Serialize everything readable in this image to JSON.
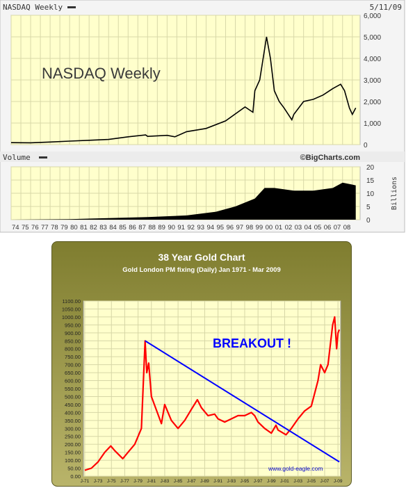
{
  "chart_data": [
    {
      "type": "line",
      "title": "NASDAQ Weekly",
      "header_label": "NASDAQ Weekly",
      "date": "5/11/09",
      "watermark": "NASDAQ Weekly",
      "credit": "©BigCharts.com",
      "colors": {
        "background": "#ffffcc",
        "line": "#000000",
        "grid": "#cfcfa0"
      },
      "grid": true,
      "price_axis": {
        "ylim": [
          0,
          6000
        ],
        "ticks": [
          0,
          1000,
          2000,
          3000,
          4000,
          5000,
          6000
        ],
        "tick_labels": [
          "0",
          "1,000",
          "2,000",
          "3,000",
          "4,000",
          "5,000",
          "6,000"
        ]
      },
      "x": [
        1974,
        1976,
        1978,
        1980,
        1982,
        1984,
        1986,
        1987.8,
        1988,
        1990,
        1990.8,
        1992,
        1994,
        1996,
        1998,
        1998.8,
        1999,
        1999.5,
        2000.2,
        2000.6,
        2001,
        2001.5,
        2002,
        2002.8,
        2003,
        2004,
        2005,
        2006,
        2007,
        2007.8,
        2008.2,
        2008.7,
        2009,
        2009.35
      ],
      "y": [
        90,
        85,
        120,
        160,
        200,
        240,
        360,
        450,
        380,
        430,
        360,
        600,
        750,
        1100,
        1750,
        1500,
        2500,
        3000,
        5000,
        4000,
        2500,
        2000,
        1700,
        1150,
        1400,
        2000,
        2100,
        2300,
        2600,
        2800,
        2500,
        1700,
        1400,
        1700
      ],
      "volume": {
        "label": "Volume",
        "unit_label": "Billions",
        "ylim": [
          0,
          20
        ],
        "ticks": [
          0,
          5,
          10,
          15,
          20
        ],
        "tick_labels": [
          "0",
          "5",
          "10",
          "15",
          "20"
        ],
        "x": [
          1974,
          1980,
          1984,
          1988,
          1992,
          1995,
          1997,
          1999,
          2000,
          2001,
          2003,
          2005,
          2007,
          2008,
          2009.35
        ],
        "values": [
          0,
          0.2,
          0.6,
          1,
          1.6,
          3,
          5,
          8,
          12,
          12,
          11,
          11,
          12,
          14,
          13
        ]
      },
      "x_tick_labels": [
        "74",
        "75",
        "76",
        "77",
        "78",
        "79",
        "80",
        "81",
        "82",
        "83",
        "84",
        "85",
        "86",
        "87",
        "88",
        "89",
        "90",
        "91",
        "92",
        "93",
        "94",
        "95",
        "96",
        "97",
        "98",
        "99",
        "00",
        "01",
        "02",
        "03",
        "04",
        "05",
        "06",
        "07",
        "08"
      ]
    },
    {
      "type": "line",
      "title": "38 Year Gold Chart",
      "subtitle": "Gold London PM fixing (Daily) Jan 1971 - Mar 2009",
      "annotation": "BREAKOUT !",
      "credit": "www.gold-eagle.com",
      "colors": {
        "frame": "#8b8a3c",
        "background": "#ffffcc",
        "line": "#ff0000",
        "trend": "#0000ff",
        "annotation": "#0000ff",
        "title": "#ffffff"
      },
      "grid": true,
      "ylim": [
        0,
        1100
      ],
      "y_ticks": [
        0,
        50,
        100,
        150,
        200,
        250,
        300,
        350,
        400,
        450,
        500,
        550,
        600,
        650,
        700,
        750,
        800,
        850,
        900,
        950,
        1000,
        1050,
        1100
      ],
      "y_tick_labels": [
        "0.00",
        "50.00",
        "100.00",
        "150.00",
        "200.00",
        "250.00",
        "300.00",
        "350.00",
        "400.00",
        "450.00",
        "500.00",
        "550.00",
        "600.00",
        "650.00",
        "700.00",
        "750.00",
        "800.00",
        "850.00",
        "900.00",
        "950.00",
        "1000.00",
        "1050.00",
        "1100.00"
      ],
      "x_ticks": [
        1971,
        1973,
        1975,
        1977,
        1979,
        1981,
        1983,
        1985,
        1987,
        1989,
        1991,
        1993,
        1995,
        1997,
        1999,
        2001,
        2003,
        2005,
        2007,
        2009
      ],
      "x_tick_labels": [
        "J-71",
        "J-73",
        "J-75",
        "J-77",
        "J-79",
        "J-81",
        "J-83",
        "J-85",
        "J-87",
        "J-89",
        "J-91",
        "J-93",
        "J-95",
        "J-97",
        "J-99",
        "J-01",
        "J-03",
        "J-05",
        "J-07",
        "J-09"
      ],
      "x": [
        1971,
        1972,
        1973,
        1973.5,
        1974,
        1974.9,
        1975.5,
        1976.7,
        1977.5,
        1978.5,
        1979.5,
        1980.05,
        1980.3,
        1980.6,
        1981,
        1982.5,
        1983,
        1984,
        1985,
        1986,
        1987,
        1987.9,
        1988.5,
        1989.5,
        1990.5,
        1991,
        1992,
        1993,
        1994,
        1995,
        1996,
        1996.5,
        1997,
        1998,
        1999,
        1999.7,
        2000,
        2001.2,
        2002,
        2003,
        2004,
        2005,
        2006,
        2006.4,
        2007,
        2007.5,
        2008.2,
        2008.5,
        2008.8,
        2009,
        2009.2
      ],
      "y": [
        37,
        50,
        90,
        120,
        150,
        190,
        160,
        110,
        150,
        200,
        300,
        850,
        650,
        710,
        500,
        330,
        450,
        350,
        300,
        350,
        420,
        480,
        430,
        380,
        390,
        360,
        340,
        360,
        380,
        380,
        400,
        380,
        340,
        300,
        270,
        320,
        290,
        260,
        300,
        360,
        410,
        440,
        600,
        700,
        650,
        700,
        950,
        1000,
        800,
        900,
        920
      ],
      "trendline": {
        "x": [
          1980.05,
          2009.2
        ],
        "y": [
          850,
          90
        ]
      }
    }
  ]
}
